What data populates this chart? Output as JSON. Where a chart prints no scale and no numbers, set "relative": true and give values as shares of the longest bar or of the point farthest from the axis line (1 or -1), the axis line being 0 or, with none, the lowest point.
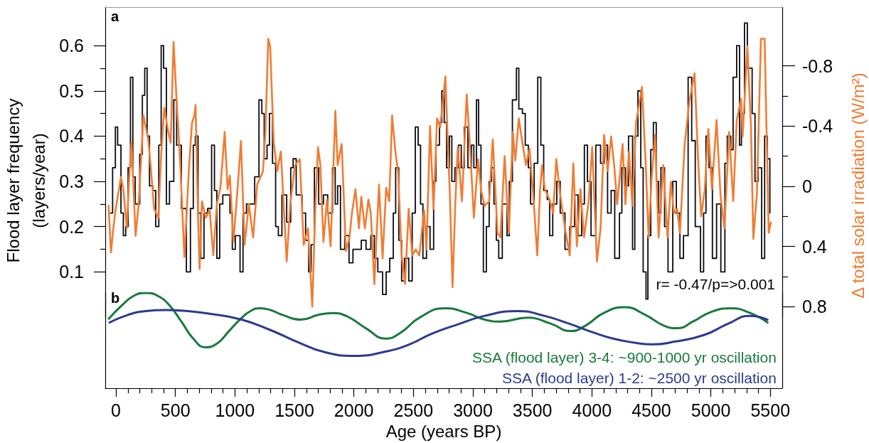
{
  "chart_data": [
    {
      "type": "line",
      "ylabel": "Flood layer frequency (layers/year)",
      "y2label": "Δ total solar irradiation (W/m²)",
      "xlim": [
        -90,
        5600
      ],
      "ylim": [
        0,
        0.685
      ],
      "yticks": [
        0.1,
        {
          "value": 0.15,
          "label": null
        },
        0.2,
        {
          "value": 0.25,
          "label": null
        },
        0.3,
        {
          "value": 0.35,
          "label": null
        },
        0.4,
        {
          "value": 0.45,
          "label": null
        },
        0.5,
        {
          "value": 0.55,
          "label": null
        },
        0.6
      ],
      "y2lim": [
        0.87,
        -1.19
      ],
      "y2ticks": [
        -0.8,
        {
          "value": -0.6,
          "label": null
        },
        -0.4,
        {
          "value": -0.2,
          "label": null
        },
        0,
        {
          "value": 0.2,
          "label": null
        },
        0.4,
        {
          "value": 0.6,
          "label": null
        },
        0.8
      ],
      "tick_labels": "y",
      "annotations": [
        "a",
        "r= -0.47/p=>0.001"
      ],
      "series": [
        {
          "type": "step",
          "color": "#0a0a14",
          "x": [
            -45,
            -28,
            -5,
            14,
            42,
            62,
            82,
            102,
            122,
            142,
            162,
            200,
            222,
            242,
            262,
            282,
            310,
            334,
            360,
            380,
            400,
            424,
            450,
            486,
            510,
            550,
            592,
            626,
            650,
            667,
            690,
            713,
            740,
            770,
            804,
            828,
            848,
            872,
            898,
            928,
            958,
            978,
            1003,
            1043,
            1068,
            1097,
            1137,
            1166,
            1202,
            1226,
            1246,
            1270,
            1290,
            1316,
            1342,
            1365,
            1395,
            1435,
            1469,
            1489,
            1515,
            1565,
            1594,
            1620,
            1640,
            1668,
            1704,
            1744,
            1780,
            1820,
            1843,
            1863,
            1887,
            1923,
            1959,
            1992,
            2022,
            2062,
            2102,
            2142,
            2172,
            2201,
            2241,
            2271,
            2301,
            2331,
            2351,
            2377,
            2401,
            2425,
            2461,
            2490,
            2516,
            2540,
            2560,
            2580,
            2610,
            2640,
            2670,
            2689,
            2719,
            2739,
            2759,
            2779,
            2803,
            2823,
            2849,
            2879,
            2902,
            2928,
            2958,
            2988,
            3008,
            3030,
            3048,
            3068,
            3088,
            3113,
            3137,
            3157,
            3177,
            3197,
            3217,
            3247,
            3287,
            3306,
            3332,
            3366,
            3386,
            3416,
            3440,
            3466,
            3485,
            3515,
            3545,
            3571,
            3595,
            3625,
            3645,
            3671,
            3705,
            3734,
            3774,
            3814,
            3854,
            3884,
            3914,
            3937,
            3963,
            3993,
            4033,
            4073,
            4103,
            4132,
            4162,
            4192,
            4232,
            4252,
            4282,
            4308,
            4342,
            4361,
            4387,
            4411,
            4431,
            4455,
            4471,
            4495,
            4517,
            4541,
            4561,
            4580,
            4611,
            4640,
            4680,
            4710,
            4740,
            4770,
            4809,
            4839,
            4869,
            4913,
            4939,
            4959,
            4985,
            5013,
            5048,
            5084,
            5118,
            5138,
            5168,
            5187,
            5217,
            5241,
            5257,
            5283,
            5307,
            5347,
            5371,
            5397,
            5427,
            5452,
            5475,
            5496
          ],
          "values": [
            0.23,
            0.33,
            0.42,
            0.38,
            0.23,
            0.18,
            0.2,
            0.33,
            0.53,
            0.31,
            0.25,
            0.36,
            0.49,
            0.55,
            0.4,
            0.29,
            0.28,
            0.2,
            0.38,
            0.6,
            0.55,
            0.25,
            0.3,
            0.48,
            0.38,
            0.24,
            0.1,
            0.24,
            0.38,
            0.4,
            0.23,
            0.13,
            0.23,
            0.24,
            0.38,
            0.28,
            0.13,
            0.25,
            0.27,
            0.27,
            0.23,
            0.15,
            0.18,
            0.1,
            0.23,
            0.25,
            0.25,
            0.31,
            0.48,
            0.45,
            0.35,
            0.38,
            0.45,
            0.34,
            0.2,
            0.18,
            0.27,
            0.21,
            0.33,
            0.35,
            0.27,
            0.23,
            0.17,
            0.1,
            0.16,
            0.33,
            0.25,
            0.27,
            0.23,
            0.33,
            0.25,
            0.29,
            0.15,
            0.18,
            0.12,
            0.15,
            0.15,
            0.17,
            0.15,
            0.18,
            0.13,
            0.1,
            0.05,
            0.1,
            0.13,
            0.23,
            0.33,
            0.17,
            0.08,
            0.13,
            0.08,
            0.23,
            0.42,
            0.38,
            0.25,
            0.13,
            0.2,
            0.15,
            0.3,
            0.38,
            0.43,
            0.5,
            0.43,
            0.33,
            0.4,
            0.3,
            0.33,
            0.38,
            0.33,
            0.42,
            0.33,
            0.38,
            0.33,
            0.48,
            0.38,
            0.25,
            0.1,
            0.2,
            0.3,
            0.33,
            0.25,
            0.17,
            0.13,
            0.25,
            0.18,
            0.3,
            0.48,
            0.55,
            0.46,
            0.45,
            0.38,
            0.33,
            0.25,
            0.34,
            0.53,
            0.38,
            0.28,
            0.26,
            0.18,
            0.25,
            0.3,
            0.23,
            0.15,
            0.2,
            0.27,
            0.18,
            0.25,
            0.38,
            0.3,
            0.18,
            0.38,
            0.34,
            0.38,
            0.23,
            0.28,
            0.13,
            0.23,
            0.33,
            0.29,
            0.4,
            0.15,
            0.4,
            0.5,
            0.33,
            0.1,
            0.04,
            0.18,
            0.37,
            0.43,
            0.3,
            0.23,
            0.33,
            0.2,
            0.1,
            0.3,
            0.23,
            0.13,
            0.18,
            0.53,
            0.39,
            0.2,
            0.1,
            0.23,
            0.4,
            0.33,
            0.13,
            0.25,
            0.1,
            0.34,
            0.4,
            0.37,
            0.53,
            0.6,
            0.38,
            0.45,
            0.65,
            0.55,
            0.45,
            0.3,
            0.33,
            0.13,
            0.4,
            0.35,
            0.23
          ]
        },
        {
          "type": "line",
          "axis": "y2",
          "color": "#ef7d34",
          "x": [
            -62,
            -42,
            -22,
            -2,
            42,
            62,
            91,
            112,
            131,
            165,
            191,
            231,
            271,
            291,
            321,
            356,
            380,
            406,
            440,
            460,
            484,
            509,
            539,
            575,
            615,
            639,
            659,
            669,
            689,
            703,
            723,
            754,
            788,
            818,
            848,
            878,
            914,
            938,
            957,
            987,
            1017,
            1051,
            1081,
            1117,
            1153,
            1187,
            1236,
            1256,
            1280,
            1296,
            1326,
            1356,
            1386,
            1435,
            1465,
            1505,
            1545,
            1578,
            1614,
            1650,
            1674,
            1698,
            1718,
            1744,
            1774,
            1804,
            1844,
            1863,
            1897,
            1933,
            1963,
            1983,
            2013,
            2042,
            2062,
            2092,
            2122,
            2142,
            2172,
            2211,
            2241,
            2271,
            2297,
            2321,
            2351,
            2371,
            2401,
            2430,
            2460,
            2490,
            2520,
            2550,
            2590,
            2610,
            2640,
            2669,
            2699,
            2725,
            2769,
            2793,
            2805,
            2829,
            2853,
            2873,
            2908,
            2948,
            2978,
            3008,
            3044,
            3068,
            3098,
            3137,
            3167,
            3207,
            3231,
            3267,
            3302,
            3336,
            3356,
            3386,
            3416,
            3446,
            3476,
            3510,
            3541,
            3565,
            3581,
            3605,
            3645,
            3675,
            3701,
            3728,
            3774,
            3814,
            3844,
            3874,
            3904,
            3934,
            3973,
            4003,
            4043,
            4073,
            4103,
            4133,
            4162,
            4192,
            4212,
            4232,
            4258,
            4282,
            4312,
            4341,
            4371,
            4421,
            4451,
            4477,
            4501,
            4531,
            4561,
            4600,
            4636,
            4664,
            4690,
            4716,
            4740,
            4780,
            4819,
            4863,
            4895,
            4919,
            4949,
            4979,
            5009,
            5048,
            5082,
            5114,
            5154,
            5188,
            5218,
            5254,
            5267,
            5307,
            5337,
            5357,
            5387,
            5421,
            5452,
            5486,
            5505
          ],
          "values": [
            0.13,
            0.44,
            0.28,
            0.15,
            -0.06,
            0.02,
            0.28,
            -0.07,
            -0.29,
            0.33,
            0.12,
            -0.47,
            -0.31,
            -0.14,
            0.15,
            0.21,
            -0.21,
            -0.52,
            -0.36,
            -0.29,
            -0.96,
            -0.58,
            -0.17,
            0.47,
            -0.14,
            -0.42,
            -0.47,
            -0.54,
            0.18,
            0.55,
            0.1,
            0.21,
            0.16,
            0.46,
            0.12,
            0.01,
            -0.36,
            0.02,
            -0.07,
            0.37,
            0.07,
            -0.3,
            0.39,
            0.12,
            0.34,
            -0.01,
            -0.1,
            -0.36,
            -0.98,
            -0.93,
            -0.29,
            -0.1,
            -0.23,
            0.5,
            0.12,
            -0.14,
            -0.18,
            0.39,
            0.28,
            0.8,
            0.18,
            -0.26,
            -0.14,
            0.37,
            0.09,
            0.4,
            -0.5,
            -0.14,
            -0.28,
            0.43,
            0.34,
            0.18,
            0.02,
            0.28,
            0.07,
            0.28,
            0.09,
            0.18,
            0.65,
            -0.01,
            0.48,
            0.01,
            0.1,
            -0.47,
            -0.21,
            -0.1,
            0.46,
            0.65,
            0.15,
            0.46,
            0.42,
            0.46,
            0.16,
            0.42,
            -0.4,
            0.15,
            -0.45,
            -0.39,
            -0.73,
            -0.21,
            0.02,
            0.67,
            0.1,
            -0.26,
            0.1,
            -0.61,
            -0.23,
            0.21,
            -0.18,
            0.02,
            0.13,
            0.1,
            -0.31,
            0.31,
            0.34,
            -0.2,
            0.31,
            -0.36,
            -0.17,
            -0.45,
            -0.29,
            -0.14,
            -0.25,
            0.09,
            0.46,
            0.02,
            -0.14,
            0.02,
            0.09,
            0.18,
            -0.18,
            0.02,
            0.28,
            0.46,
            -0.15,
            0.4,
            0.02,
            0.34,
            0.1,
            -0.26,
            0.5,
            0.28,
            -0.34,
            -0.1,
            -0.33,
            -0.1,
            0.12,
            -0.04,
            -0.28,
            0.12,
            -0.23,
            0.13,
            -0.42,
            -0.66,
            -0.17,
            0.34,
            -0.04,
            -0.34,
            0.34,
            -0.14,
            0.34,
            -0.03,
            0.18,
            0.15,
            0.31,
            -0.28,
            -0.56,
            -0.75,
            -0.14,
            0.2,
            0.02,
            -0.38,
            0.02,
            -0.44,
            0.07,
            0.28,
            -0.36,
            0.1,
            -0.44,
            -0.58,
            -0.33,
            -0.93,
            -0.4,
            0.35,
            0.05,
            -0.98,
            -0.98,
            0.31,
            0.24
          ]
        }
      ]
    },
    {
      "type": "line",
      "relative": true,
      "xlabel": "Age (years BP)",
      "xlim": [
        -90,
        5600
      ],
      "xticks": [
        0,
        {
          "value": 100,
          "label": null
        },
        {
          "value": 200,
          "label": null
        },
        {
          "value": 300,
          "label": null
        },
        {
          "value": 400,
          "label": null
        },
        500,
        {
          "value": 600,
          "label": null
        },
        {
          "value": 700,
          "label": null
        },
        {
          "value": 800,
          "label": null
        },
        {
          "value": 900,
          "label": null
        },
        1000,
        {
          "value": 1100,
          "label": null
        },
        {
          "value": 1200,
          "label": null
        },
        {
          "value": 1300,
          "label": null
        },
        {
          "value": 1400,
          "label": null
        },
        1500,
        {
          "value": 1600,
          "label": null
        },
        {
          "value": 1700,
          "label": null
        },
        {
          "value": 1800,
          "label": null
        },
        {
          "value": 1900,
          "label": null
        },
        2000,
        {
          "value": 2100,
          "label": null
        },
        {
          "value": 2200,
          "label": null
        },
        {
          "value": 2300,
          "label": null
        },
        {
          "value": 2400,
          "label": null
        },
        2500,
        {
          "value": 2600,
          "label": null
        },
        {
          "value": 2700,
          "label": null
        },
        {
          "value": 2800,
          "label": null
        },
        {
          "value": 2900,
          "label": null
        },
        3000,
        {
          "value": 3100,
          "label": null
        },
        {
          "value": 3200,
          "label": null
        },
        {
          "value": 3300,
          "label": null
        },
        {
          "value": 3400,
          "label": null
        },
        3500,
        {
          "value": 3600,
          "label": null
        },
        {
          "value": 3700,
          "label": null
        },
        {
          "value": 3800,
          "label": null
        },
        {
          "value": 3900,
          "label": null
        },
        4000,
        {
          "value": 4100,
          "label": null
        },
        {
          "value": 4200,
          "label": null
        },
        {
          "value": 4300,
          "label": null
        },
        {
          "value": 4400,
          "label": null
        },
        4500,
        {
          "value": 4600,
          "label": null
        },
        {
          "value": 4700,
          "label": null
        },
        {
          "value": 4800,
          "label": null
        },
        {
          "value": 4900,
          "label": null
        },
        5000,
        {
          "value": 5100,
          "label": null
        },
        {
          "value": 5200,
          "label": null
        },
        {
          "value": 5300,
          "label": null
        },
        {
          "value": 5400,
          "label": null
        },
        5500
      ],
      "tick_labels": "x",
      "annotations": [
        "b"
      ],
      "legend": "bottom right",
      "series": [
        {
          "name": "SSA (flood layer) 3-4: ~900-1000 yr oscillation",
          "color": "#177a3c",
          "x": [
            -60,
            50,
            150,
            251,
            350,
            450,
            550,
            650,
            752,
            850,
            950,
            1050,
            1130,
            1212,
            1300,
            1400,
            1553,
            1700,
            1821,
            1950,
            2100,
            2269,
            2400,
            2550,
            2765,
            2950,
            3100,
            3231,
            3458,
            3650,
            3822,
            3950,
            4100,
            4276,
            4450,
            4600,
            4718,
            4850,
            5000,
            5166,
            5330,
            5476
          ],
          "values": [
            0.73,
            0.87,
            0.97,
            1,
            0.97,
            0.87,
            0.7,
            0.52,
            0.43,
            0.47,
            0.6,
            0.73,
            0.81,
            0.84,
            0.82,
            0.77,
            0.72,
            0.77,
            0.79,
            0.75,
            0.63,
            0.52,
            0.59,
            0.74,
            0.84,
            0.79,
            0.72,
            0.7,
            0.74,
            0.68,
            0.6,
            0.66,
            0.79,
            0.85,
            0.77,
            0.66,
            0.63,
            0.7,
            0.8,
            0.84,
            0.79,
            0.69
          ]
        },
        {
          "name": "SSA (flood layer) 1-2: ~2500 yr oscillation",
          "color": "#2d3a8e",
          "x": [
            -54,
            100,
            250,
            420,
            600,
            800,
            1057,
            1300,
            1517,
            1750,
            2007,
            2250,
            2466,
            2650,
            2849,
            3100,
            3380,
            3600,
            3804,
            4000,
            4180,
            4350,
            4509,
            4700,
            4945,
            5150,
            5327,
            5476
          ],
          "values": [
            0.69,
            0.77,
            0.81,
            0.82,
            0.81,
            0.78,
            0.72,
            0.61,
            0.49,
            0.38,
            0.34,
            0.38,
            0.46,
            0.57,
            0.66,
            0.76,
            0.81,
            0.76,
            0.68,
            0.59,
            0.52,
            0.48,
            0.46,
            0.49,
            0.56,
            0.68,
            0.76,
            0.72
          ]
        }
      ]
    }
  ]
}
